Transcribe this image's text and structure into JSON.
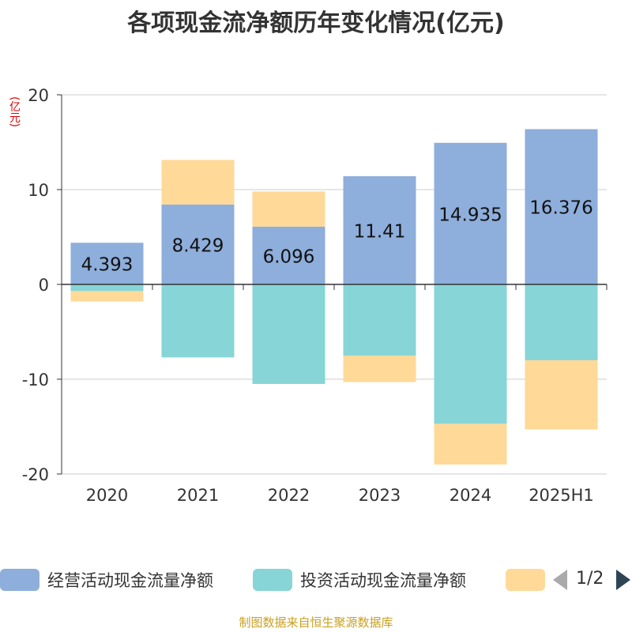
{
  "chart_data": {
    "type": "bar",
    "title": "各项现金流净额历年变化情况(亿元)",
    "ylabel": "(亿元)",
    "xlabel": "",
    "categories": [
      "2020",
      "2021",
      "2022",
      "2023",
      "2024",
      "2025H1"
    ],
    "ylim": [
      -20,
      20
    ],
    "yticks": [
      20,
      10,
      0,
      -10,
      -20
    ],
    "grid": true,
    "stacked": true,
    "series": [
      {
        "name": "经营活动现金流量净额",
        "color": "#8eaedb",
        "values": [
          4.393,
          8.429,
          6.096,
          11.41,
          14.935,
          16.376
        ],
        "show_labels": true
      },
      {
        "name": "投资活动现金流量净额",
        "color": "#87d5d6",
        "values": [
          -0.7,
          -7.7,
          -10.5,
          -7.5,
          -14.7,
          -8.0
        ],
        "show_labels": false
      },
      {
        "name": "",
        "color": "#ffd998",
        "values": [
          -1.1,
          4.7,
          3.7,
          -2.8,
          -4.3,
          -7.3
        ],
        "show_labels": false
      }
    ],
    "legend_position": "bottom"
  },
  "legend": {
    "pager_text": "1/2"
  },
  "source": "制图数据来自恒生聚源数据库"
}
